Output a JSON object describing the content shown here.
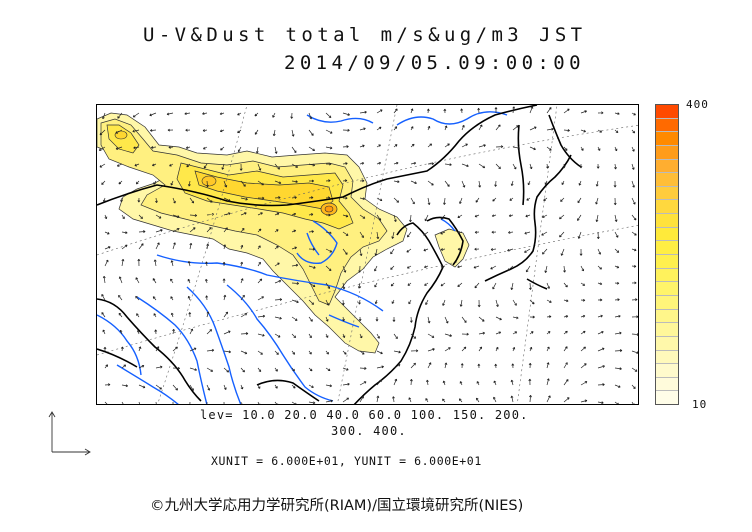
{
  "title": {
    "line1": "U-V&Dust total m/s&ug/m3 JST",
    "line2": "2014/09/05.09:00:00"
  },
  "colorbar": {
    "max_label": "400",
    "min_label": "10",
    "colors": [
      "#ff4a00",
      "#ff6a00",
      "#ff8a00",
      "#ff9c1a",
      "#ffae30",
      "#ffbe38",
      "#ffcc3c",
      "#ffd83e",
      "#ffe23c",
      "#ffea3a",
      "#ffee44",
      "#fff04e",
      "#fff25c",
      "#fff46a",
      "#fff57a",
      "#fff68a",
      "#fff79a",
      "#fff8aa",
      "#fff9bb",
      "#fffacc",
      "#fffbdb",
      "#fffde8"
    ]
  },
  "levels": {
    "line1": "lev= 10.0 20.0 40.0 60.0 100. 150. 200.",
    "line2": "300. 400."
  },
  "units": "XUNIT = 6.000E+01, YUNIT = 6.000E+01",
  "credit": "©九州大学応用力学研究所(RIAM)/国立環境研究所(NIES)",
  "style": {
    "coast_color": "#000000",
    "river_color": "#1560ff",
    "grid_color": "#555555",
    "vector_color": "#222222"
  },
  "icons": {
    "axes": "vector-axes-icon"
  }
}
